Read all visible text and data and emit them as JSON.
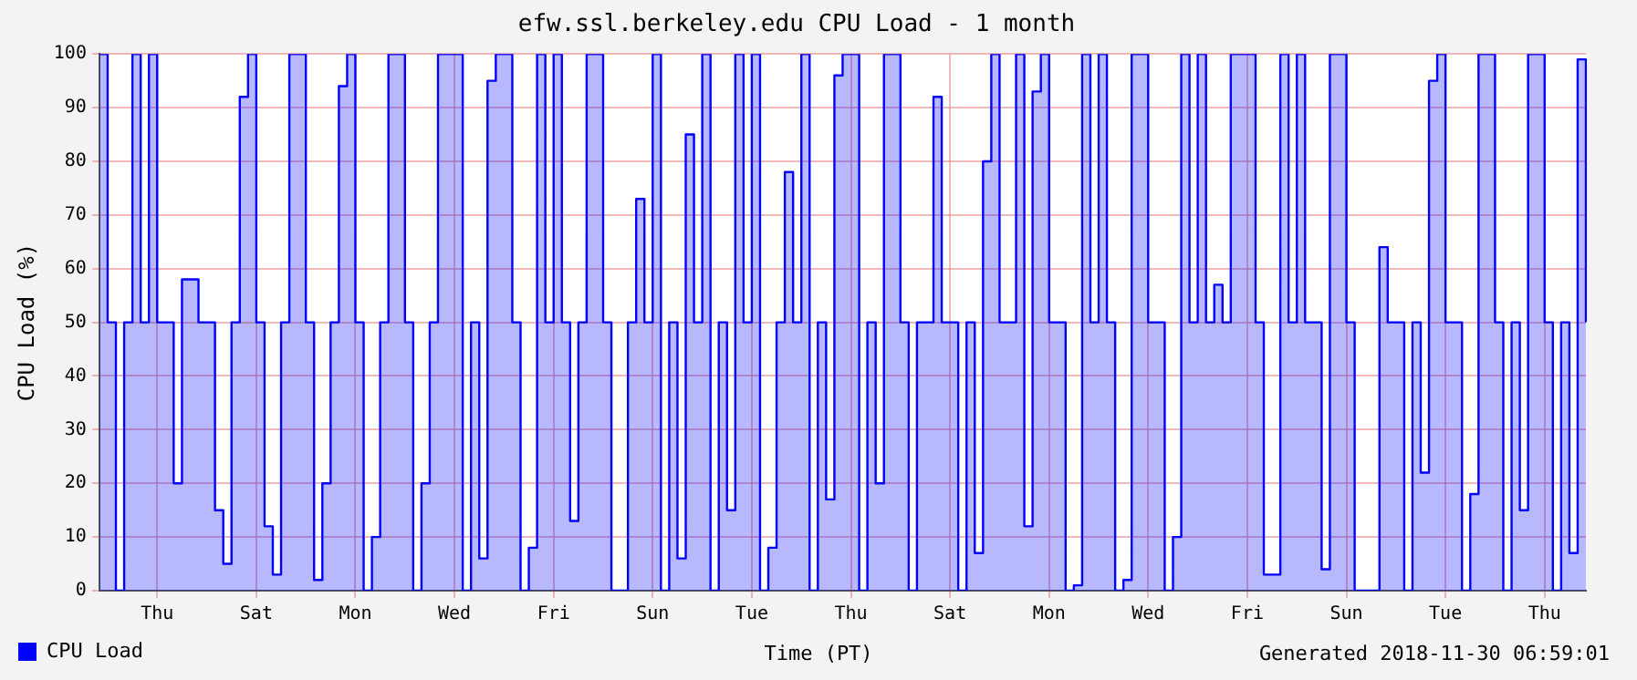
{
  "chart_data": {
    "type": "area",
    "title": "efw.ssl.berkeley.edu CPU Load - 1 month",
    "xlabel": "Time (PT)",
    "ylabel": "CPU Load (%)",
    "annotations": [
      "Generated 2018-11-30 06:59:01"
    ],
    "categories": [
      null,
      null,
      null,
      null,
      null,
      null,
      null,
      "Thu",
      null,
      null,
      null,
      null,
      null,
      null,
      null,
      null,
      null,
      null,
      null,
      "Sat",
      null,
      null,
      null,
      null,
      null,
      null,
      null,
      null,
      null,
      null,
      null,
      "Mon",
      null,
      null,
      null,
      null,
      null,
      null,
      null,
      null,
      null,
      null,
      null,
      "Wed",
      null,
      null,
      null,
      null,
      null,
      null,
      null,
      null,
      null,
      null,
      null,
      "Fri",
      null,
      null,
      null,
      null,
      null,
      null,
      null,
      null,
      null,
      null,
      null,
      "Sun",
      null,
      null,
      null,
      null,
      null,
      null,
      null,
      null,
      null,
      null,
      null,
      "Tue",
      null,
      null,
      null,
      null,
      null,
      null,
      null,
      null,
      null,
      null,
      null,
      "Thu",
      null,
      null,
      null,
      null,
      null,
      null,
      null,
      null,
      null,
      null,
      null,
      "Sat",
      null,
      null,
      null,
      null,
      null,
      null,
      null,
      null,
      null,
      null,
      null,
      "Mon",
      null,
      null,
      null,
      null,
      null,
      null,
      null,
      null,
      null,
      null,
      null,
      "Wed",
      null,
      null,
      null,
      null,
      null,
      null,
      null,
      null,
      null,
      null,
      null,
      "Fri",
      null,
      null,
      null,
      null,
      null,
      null,
      null,
      null,
      null,
      null,
      null,
      "Sun",
      null,
      null,
      null,
      null,
      null,
      null,
      null,
      null,
      null,
      null,
      null,
      "Tue",
      null,
      null,
      null,
      null,
      null,
      null,
      null,
      null,
      null,
      null,
      null,
      "Thu",
      null,
      null,
      null,
      null,
      null
    ],
    "series": [
      {
        "name": "CPU Load",
        "color": "#0000ff",
        "values": [
          100,
          50,
          0,
          50,
          100,
          50,
          100,
          50,
          50,
          20,
          58,
          58,
          50,
          50,
          15,
          5,
          50,
          92,
          100,
          50,
          12,
          3,
          50,
          100,
          100,
          50,
          2,
          20,
          50,
          94,
          100,
          50,
          0,
          10,
          50,
          100,
          100,
          50,
          0,
          20,
          50,
          100,
          100,
          100,
          0,
          50,
          6,
          95,
          100,
          100,
          50,
          0,
          8,
          100,
          50,
          100,
          50,
          13,
          50,
          100,
          100,
          50,
          0,
          0,
          50,
          73,
          50,
          100,
          0,
          50,
          6,
          85,
          50,
          100,
          0,
          50,
          15,
          100,
          50,
          100,
          0,
          8,
          50,
          78,
          50,
          100,
          0,
          50,
          17,
          96,
          100,
          100,
          0,
          50,
          20,
          100,
          100,
          50,
          0,
          50,
          50,
          92,
          50,
          50,
          0,
          50,
          7,
          80,
          100,
          50,
          50,
          100,
          12,
          93,
          100,
          50,
          50,
          0,
          1,
          100,
          50,
          100,
          50,
          0,
          2,
          100,
          100,
          50,
          50,
          0,
          10,
          100,
          50,
          100,
          50,
          57,
          50,
          100,
          100,
          100,
          50,
          3,
          3,
          100,
          50,
          100,
          50,
          50,
          4,
          100,
          100,
          50,
          0,
          0,
          0,
          64,
          50,
          50,
          0,
          50,
          22,
          95,
          100,
          50,
          50,
          0,
          18,
          100,
          100,
          50,
          0,
          50,
          15,
          100,
          100,
          50,
          0,
          50,
          7,
          99,
          50
        ]
      }
    ],
    "ylim": [
      0,
      100
    ],
    "yticks": [
      0,
      10,
      20,
      30,
      40,
      50,
      60,
      70,
      80,
      90,
      100
    ],
    "grid": true,
    "legend": "bottom left",
    "marker": "none",
    "line_style": "solid"
  }
}
